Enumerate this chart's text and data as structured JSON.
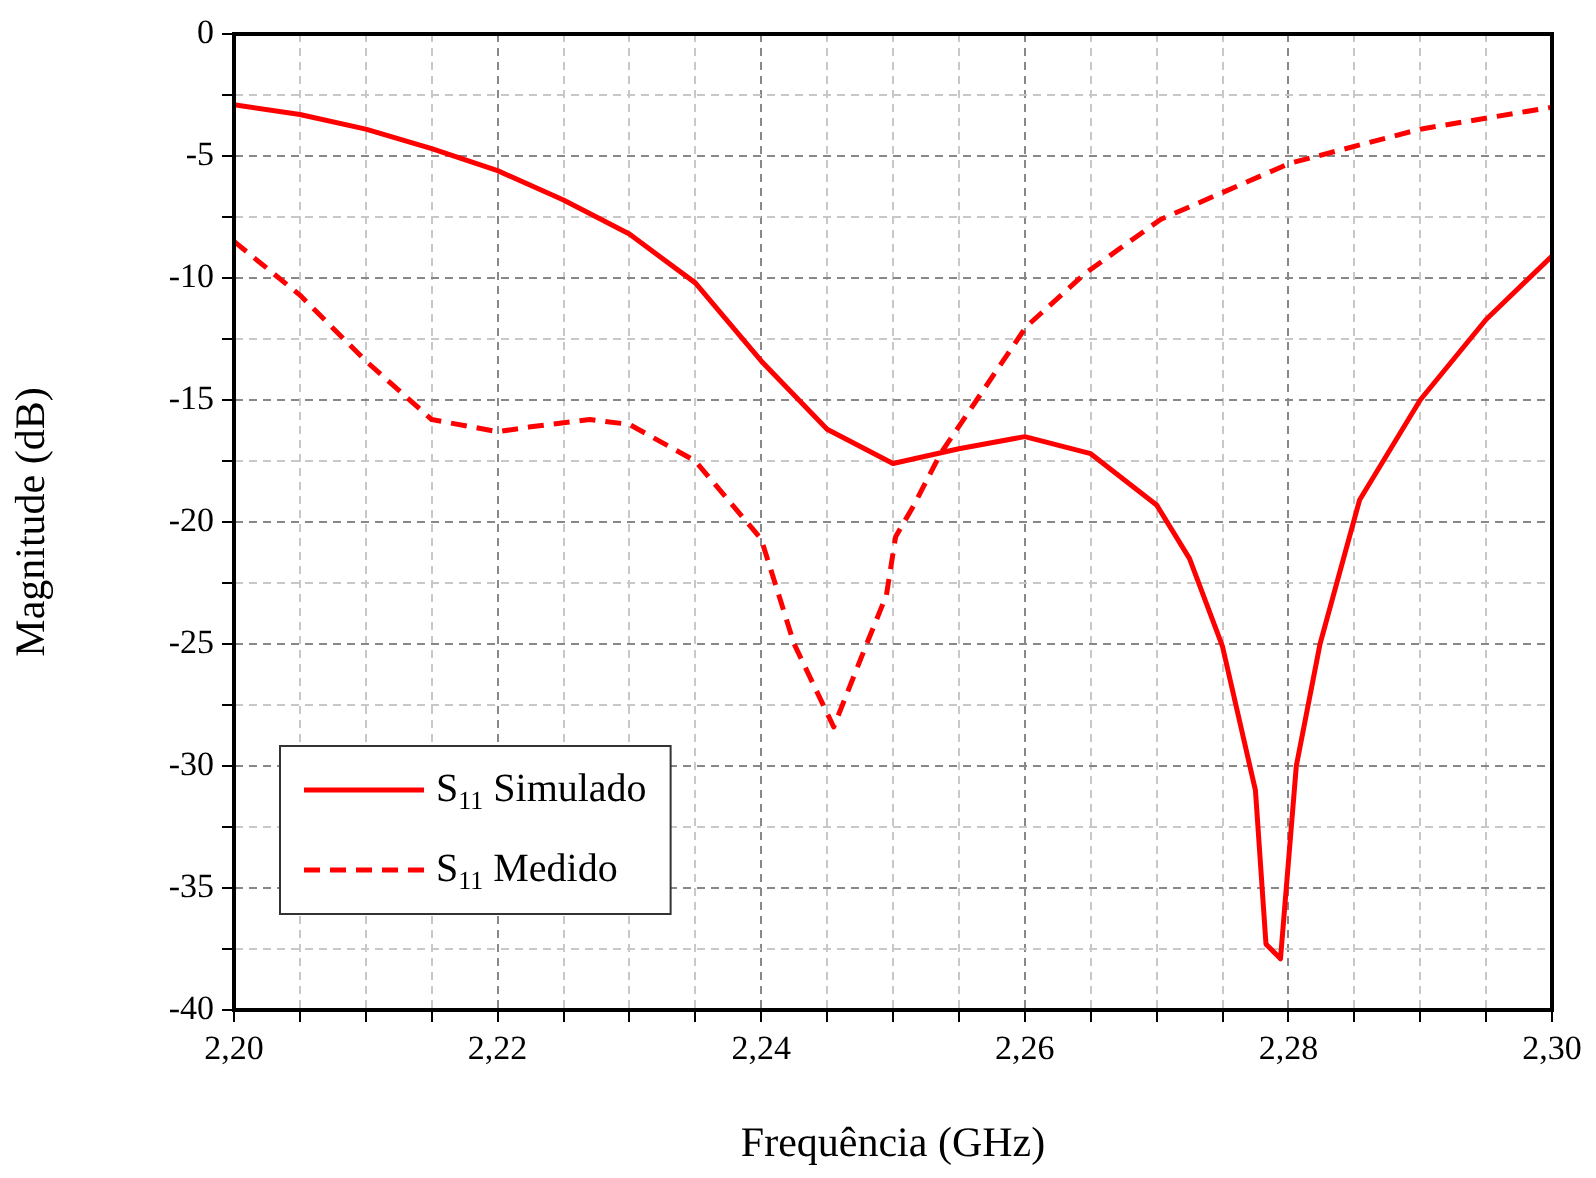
{
  "chart_data": {
    "type": "line",
    "xlabel": "Frequência (GHz)",
    "ylabel": "Magnitude (dB)",
    "xlim": [
      2.2,
      2.3
    ],
    "xticks": [
      {
        "value": 2.2,
        "label": "2,20"
      },
      {
        "value": 2.205,
        "label": null
      },
      {
        "value": 2.21,
        "label": null
      },
      {
        "value": 2.215,
        "label": null
      },
      {
        "value": 2.22,
        "label": "2,22"
      },
      {
        "value": 2.225,
        "label": null
      },
      {
        "value": 2.23,
        "label": null
      },
      {
        "value": 2.235,
        "label": null
      },
      {
        "value": 2.24,
        "label": "2,24"
      },
      {
        "value": 2.245,
        "label": null
      },
      {
        "value": 2.25,
        "label": null
      },
      {
        "value": 2.255,
        "label": null
      },
      {
        "value": 2.26,
        "label": "2,26"
      },
      {
        "value": 2.265,
        "label": null
      },
      {
        "value": 2.27,
        "label": null
      },
      {
        "value": 2.275,
        "label": null
      },
      {
        "value": 2.28,
        "label": "2,28"
      },
      {
        "value": 2.285,
        "label": null
      },
      {
        "value": 2.29,
        "label": null
      },
      {
        "value": 2.295,
        "label": null
      },
      {
        "value": 2.3,
        "label": "2,30"
      }
    ],
    "ylim": [
      -40,
      0
    ],
    "yticks": [
      -40,
      {
        "value": -37.5,
        "label": null
      },
      -35,
      {
        "value": -32.5,
        "label": null
      },
      -30,
      {
        "value": -27.5,
        "label": null
      },
      -25,
      {
        "value": -22.5,
        "label": null
      },
      -20,
      {
        "value": -17.5,
        "label": null
      },
      -15,
      {
        "value": -12.5,
        "label": null
      },
      -10,
      {
        "value": -7.5,
        "label": null
      },
      -5,
      {
        "value": -2.5,
        "label": null
      },
      0
    ],
    "grid": true,
    "legend": "bottom left",
    "marker": "none",
    "series": [
      {
        "name": "S$_{11}$ Simulado",
        "color": "#ff0000",
        "line_style": "solid",
        "x": [
          2.2,
          2.205,
          2.21,
          2.215,
          2.22,
          2.225,
          2.23,
          2.235,
          2.24,
          2.245,
          2.25,
          2.255,
          2.26,
          2.265,
          2.27,
          2.2725,
          2.275,
          2.2775,
          2.2783,
          2.2794,
          2.2806,
          2.2824,
          2.2854,
          2.29,
          2.295,
          2.3
        ],
        "values": [
          -2.9,
          -3.3,
          -3.9,
          -4.7,
          -5.6,
          -6.8,
          -8.2,
          -10.2,
          -13.4,
          -16.2,
          -17.6,
          -17.0,
          -16.5,
          -17.2,
          -19.3,
          -21.5,
          -25.1,
          -31,
          -37.3,
          -37.9,
          -30.0,
          -25.0,
          -19.1,
          -15.0,
          -11.7,
          -9.1
        ]
      },
      {
        "name": "S$_{11}$ Medido",
        "color": "#ff0000",
        "line_style": "dashed",
        "x": [
          2.2,
          2.205,
          2.21,
          2.215,
          2.22,
          2.2225,
          2.227,
          2.23,
          2.235,
          2.24,
          2.2425,
          2.2455,
          2.248,
          2.2495,
          2.2502,
          2.2516,
          2.2536,
          2.2601,
          2.2646,
          2.2703,
          2.2801,
          2.29,
          2.3
        ],
        "values": [
          -8.5,
          -10.7,
          -13.4,
          -15.8,
          -16.3,
          -16.1,
          -15.8,
          -16.0,
          -17.5,
          -20.7,
          -25.0,
          -28.4,
          -25.0,
          -23.0,
          -20.6,
          -19.3,
          -17.2,
          -12.0,
          -9.8,
          -7.6,
          -5.3,
          -3.9,
          -3.0
        ]
      }
    ]
  }
}
